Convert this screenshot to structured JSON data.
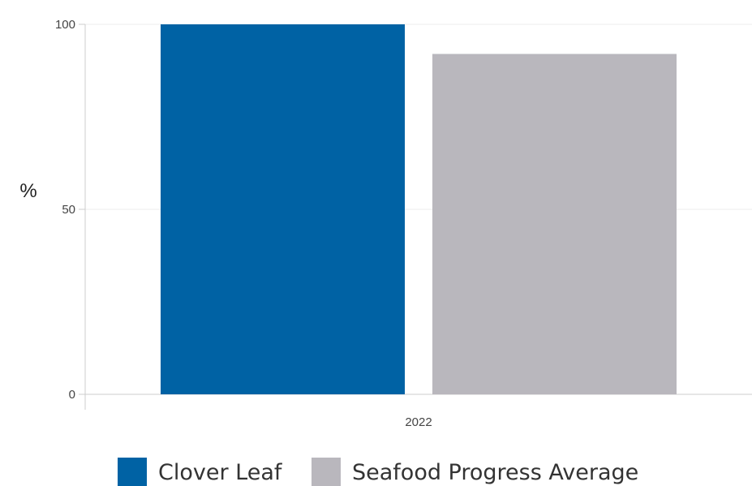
{
  "chart_data": {
    "type": "bar",
    "title": "",
    "xlabel": "",
    "ylabel": "%",
    "categories": [
      "2022"
    ],
    "ylim": [
      0,
      100
    ],
    "yticks": [
      0,
      50,
      100
    ],
    "grid": true,
    "legend_position": "bottom",
    "series": [
      {
        "name": "Clover Leaf",
        "values": [
          100
        ],
        "color": "#0062a4"
      },
      {
        "name": "Seafood Progress Average",
        "values": [
          92
        ],
        "color": "#b9b7bd"
      }
    ]
  }
}
